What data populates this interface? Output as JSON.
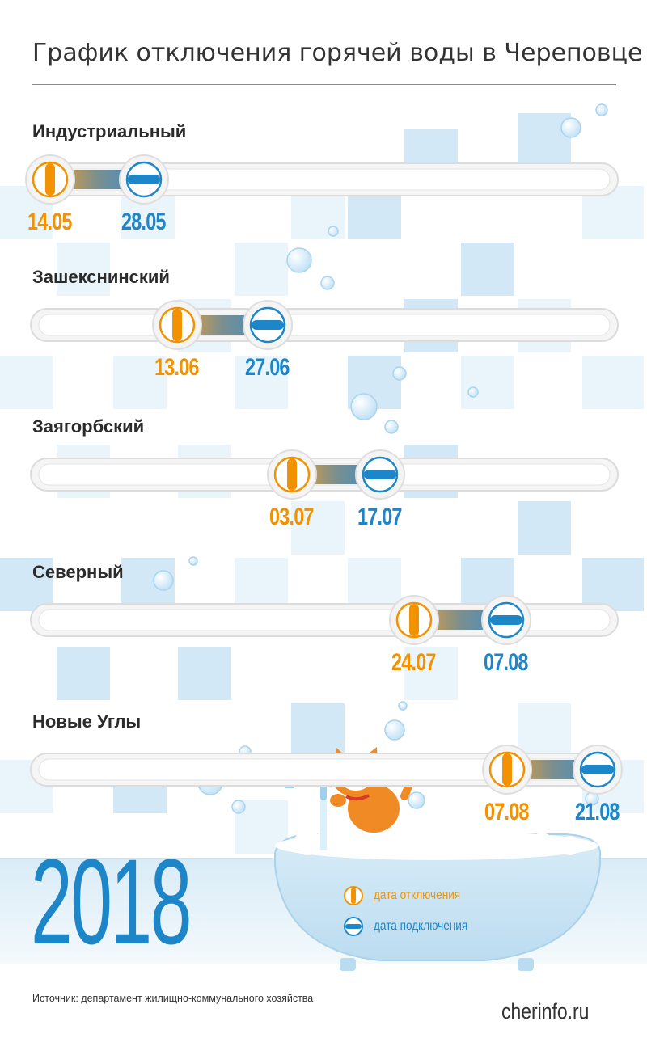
{
  "title": "График отключения горячей воды в Череповце",
  "year": "2018",
  "legend": {
    "off": "дата отключения",
    "on": "дата подключения"
  },
  "source": "Источник: департамент жилищно-коммунального хозяйства",
  "site": "cherinfo.ru",
  "colors": {
    "off": "#f39200",
    "on": "#1d86c8",
    "track": "#e6e6e6"
  },
  "districts": [
    {
      "name": "Индустриальный",
      "off": "14.05",
      "on": "28.05"
    },
    {
      "name": "Зашекснинский",
      "off": "13.06",
      "on": "27.06"
    },
    {
      "name": "Заягорбский",
      "off": "03.07",
      "on": "17.07"
    },
    {
      "name": "Северный",
      "off": "24.07",
      "on": "07.08"
    },
    {
      "name": "Новые Углы",
      "off": "07.08",
      "on": "21.08"
    }
  ]
}
